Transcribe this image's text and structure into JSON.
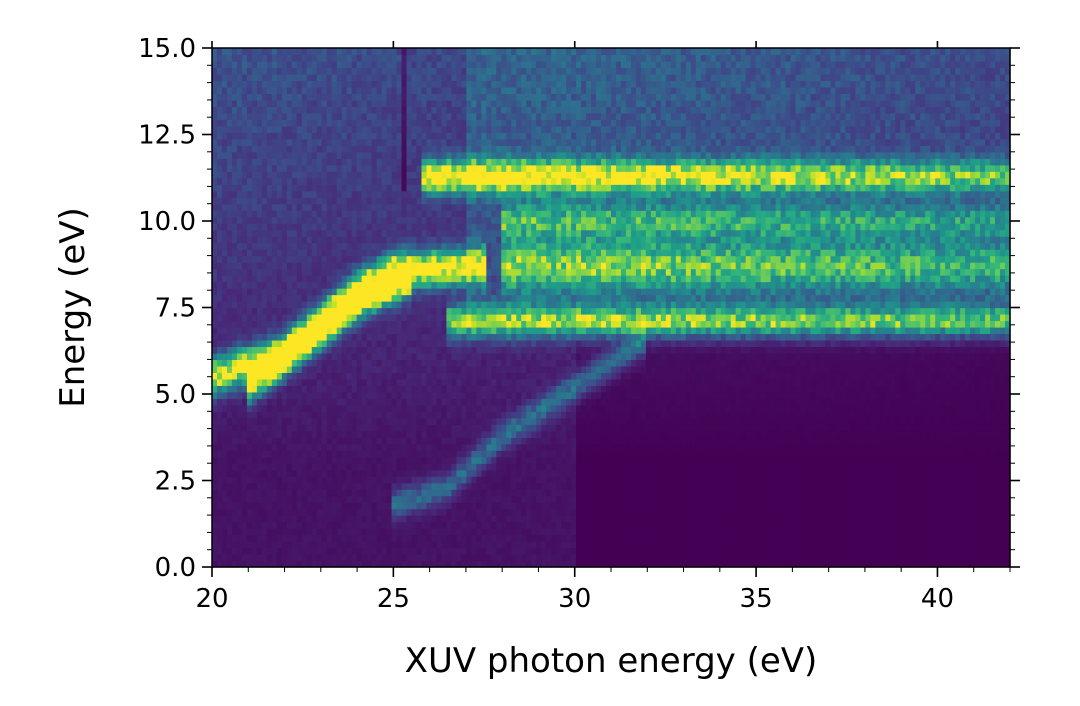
{
  "chart_data": {
    "type": "heatmap",
    "title": "",
    "xlabel": "XUV photon energy (eV)",
    "ylabel": "Energy (eV)",
    "xlim": [
      20,
      42
    ],
    "ylim": [
      0,
      15
    ],
    "x_ticks": [
      "20",
      "25",
      "30",
      "35",
      "40"
    ],
    "y_ticks": [
      "0.0",
      "2.5",
      "5.0",
      "7.5",
      "10.0",
      "12.5",
      "15.0"
    ],
    "colormap": "viridis",
    "colorbar": false,
    "grid": false,
    "features": [
      {
        "kind": "band",
        "x_start": 25.8,
        "x_end": 42,
        "y": 11.3,
        "width": 0.45,
        "intensity": [
          0.95,
          0.55
        ]
      },
      {
        "kind": "band",
        "x_start": 28,
        "x_end": 42,
        "y": 8.7,
        "width": 0.7,
        "intensity": [
          0.6,
          0.45
        ]
      },
      {
        "kind": "band",
        "x_start": 26.5,
        "x_end": 42,
        "y": 7.1,
        "width": 0.45,
        "intensity": [
          0.7,
          0.55
        ]
      },
      {
        "kind": "band",
        "x_start": 28,
        "x_end": 42,
        "y": 10.0,
        "width": 0.5,
        "intensity": [
          0.45,
          0.35
        ]
      },
      {
        "kind": "dispersive",
        "points": [
          [
            20,
            5.5
          ],
          [
            22,
            6.2
          ],
          [
            24,
            8.0
          ],
          [
            25,
            8.6
          ],
          [
            27.5,
            8.7
          ]
        ],
        "width": 0.5,
        "intensity": 0.95
      },
      {
        "kind": "dispersive",
        "points": [
          [
            21,
            5.2
          ],
          [
            22.5,
            6.4
          ],
          [
            24,
            7.6
          ],
          [
            25.5,
            8.3
          ]
        ],
        "width": 0.45,
        "intensity": 0.8
      },
      {
        "kind": "dispersive",
        "points": [
          [
            25,
            1.8
          ],
          [
            26.5,
            2.3
          ],
          [
            28,
            3.8
          ],
          [
            30,
            5.2
          ],
          [
            32,
            6.6
          ]
        ],
        "width": 0.4,
        "intensity": 0.3
      },
      {
        "kind": "vertical_line",
        "x": 25.3,
        "y_start": 10.8,
        "y_end": 15,
        "intensity": -0.15
      }
    ]
  }
}
